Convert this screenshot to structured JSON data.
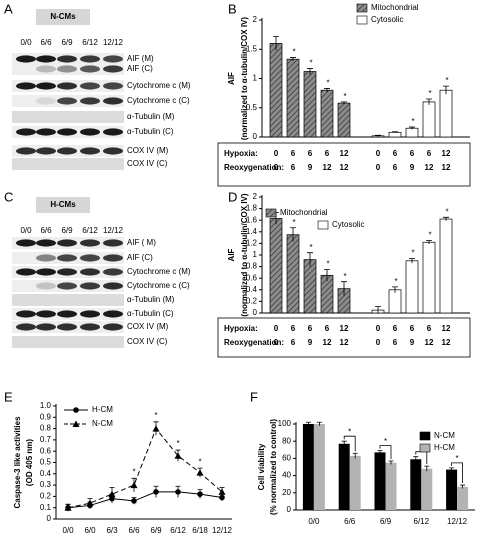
{
  "blots": [
    {
      "panel": "A",
      "title": "N-CMs",
      "lanes": [
        "0/0",
        "6/6",
        "6/9",
        "6/12",
        "12/12"
      ],
      "rows": [
        "AIF (M)",
        "AIF (C)",
        "Cytochrome c (M)",
        "Cytochrome c (C)",
        "α-Tubulin (M)",
        "α-Tubulin (C)",
        "COX IV (M)",
        "COX IV (C)"
      ]
    },
    {
      "panel": "C",
      "title": "H-CMs",
      "lanes": [
        "0/0",
        "6/6",
        "6/9",
        "6/12",
        "12/12"
      ],
      "rows": [
        "AIF ( M)",
        "AIF (C)",
        "Cytochrome c (M)",
        "Cytochrome c (C)",
        "α-Tubulin (M)",
        "α-Tubulin (C)",
        "COX IV (M)",
        "COX IV (C)"
      ]
    }
  ],
  "chart_data": [
    {
      "panel": "B",
      "type": "bar",
      "ylabel": "AIF",
      "ylabel_sub": "(normalized to α-tubulin/COX IV)",
      "ylim": [
        0,
        2
      ],
      "yticks": [
        0,
        0.5,
        1,
        1.5,
        2
      ],
      "row_labels": [
        "Hypoxia:",
        "Reoxygenation:"
      ],
      "hypoxia": [
        0,
        6,
        6,
        6,
        12
      ],
      "reoxygenation": [
        0,
        6,
        9,
        12,
        12
      ],
      "series": [
        {
          "name": "Mitochondrial",
          "color": "#8c8c8c",
          "hatch": true,
          "values": [
            1.6,
            1.33,
            1.12,
            0.8,
            0.58
          ],
          "errors": [
            0.12,
            0.03,
            0.05,
            0.03,
            0.02
          ],
          "marks": [
            null,
            "*",
            "*",
            "*",
            "*"
          ]
        },
        {
          "name": "Cytosolic",
          "color": "#ffffff",
          "hatch": false,
          "values": [
            0.02,
            0.08,
            0.15,
            0.6,
            0.8
          ],
          "errors": [
            0.01,
            0.01,
            0.02,
            0.05,
            0.07
          ],
          "marks": [
            null,
            null,
            "*",
            "*",
            "*"
          ]
        }
      ]
    },
    {
      "panel": "D",
      "type": "bar",
      "ylabel": "AIF",
      "ylabel_sub": "(normalized to α-tubulin/COX IV)",
      "ylim": [
        0,
        2
      ],
      "yticks": [
        0,
        0.2,
        0.4,
        0.6,
        0.8,
        1,
        1.2,
        1.4,
        1.6,
        1.8,
        2
      ],
      "row_labels": [
        "Hypoxia:",
        "Reoxygenation:"
      ],
      "hypoxia": [
        0,
        6,
        6,
        6,
        12
      ],
      "reoxygenation": [
        0,
        6,
        9,
        12,
        12
      ],
      "series": [
        {
          "name": "Mitochondrial",
          "color": "#8c8c8c",
          "hatch": true,
          "values": [
            1.63,
            1.35,
            0.92,
            0.65,
            0.42
          ],
          "errors": [
            0.1,
            0.12,
            0.12,
            0.1,
            0.12
          ],
          "marks": [
            null,
            "*",
            "*",
            "*",
            "*"
          ]
        },
        {
          "name": "Cytosolic",
          "color": "#ffffff",
          "hatch": false,
          "values": [
            0.05,
            0.4,
            0.9,
            1.22,
            1.62
          ],
          "errors": [
            0.06,
            0.05,
            0.04,
            0.03,
            0.03
          ],
          "marks": [
            null,
            "*",
            "*",
            "*",
            "*"
          ]
        }
      ]
    },
    {
      "panel": "E",
      "type": "line",
      "ylabel": "Caspase-3 like activities",
      "ylabel_sub": "(OD 405 nm)",
      "ylim": [
        0,
        1
      ],
      "yticks": [
        0,
        0.1,
        0.2,
        0.3,
        0.4,
        0.5,
        0.6,
        0.7,
        0.8,
        0.9,
        {
          "value": 1,
          "label": "1.0"
        }
      ],
      "categories": [
        "0/0",
        "6/0",
        "6/3",
        "6/6",
        "6/9",
        "6/12",
        "6/18",
        "12/12"
      ],
      "series": [
        {
          "name": "H-CM",
          "color": "#000000",
          "marker": "circle",
          "dashed": false,
          "values": [
            0.1,
            0.12,
            0.18,
            0.16,
            0.24,
            0.24,
            0.22,
            0.19
          ],
          "errors": [
            0.03,
            0.03,
            0.04,
            0.03,
            0.05,
            0.05,
            0.04,
            0.03
          ]
        },
        {
          "name": "N-CM",
          "color": "#000000",
          "marker": "triangle",
          "dashed": true,
          "values": [
            0.1,
            0.14,
            0.22,
            0.3,
            0.8,
            0.56,
            0.41,
            0.24
          ],
          "errors": [
            0.03,
            0.04,
            0.06,
            0.06,
            0.06,
            0.05,
            0.04,
            0.04
          ],
          "marks": [
            null,
            null,
            null,
            "*",
            "*",
            "*",
            "*",
            null
          ]
        }
      ]
    },
    {
      "panel": "F",
      "type": "bar",
      "ylabel": "Cell viability",
      "ylabel_sub": "(% normalized to control)",
      "ylim": [
        0,
        100
      ],
      "yticks": [
        0,
        20,
        40,
        60,
        80,
        100
      ],
      "categories": [
        "0/0",
        "6/6",
        "6/9",
        "6/12",
        "12/12"
      ],
      "significance": [
        null,
        "*",
        "*",
        "*",
        "*"
      ],
      "series": [
        {
          "name": "N-CM",
          "color": "#000000",
          "values": [
            100,
            77,
            67,
            59,
            47
          ],
          "errors": [
            2,
            3,
            2,
            3,
            2
          ]
        },
        {
          "name": "H-CM",
          "color": "#b3b3b3",
          "values": [
            100,
            63,
            55,
            48,
            27
          ],
          "errors": [
            2,
            3,
            2,
            3,
            2
          ]
        }
      ]
    }
  ]
}
